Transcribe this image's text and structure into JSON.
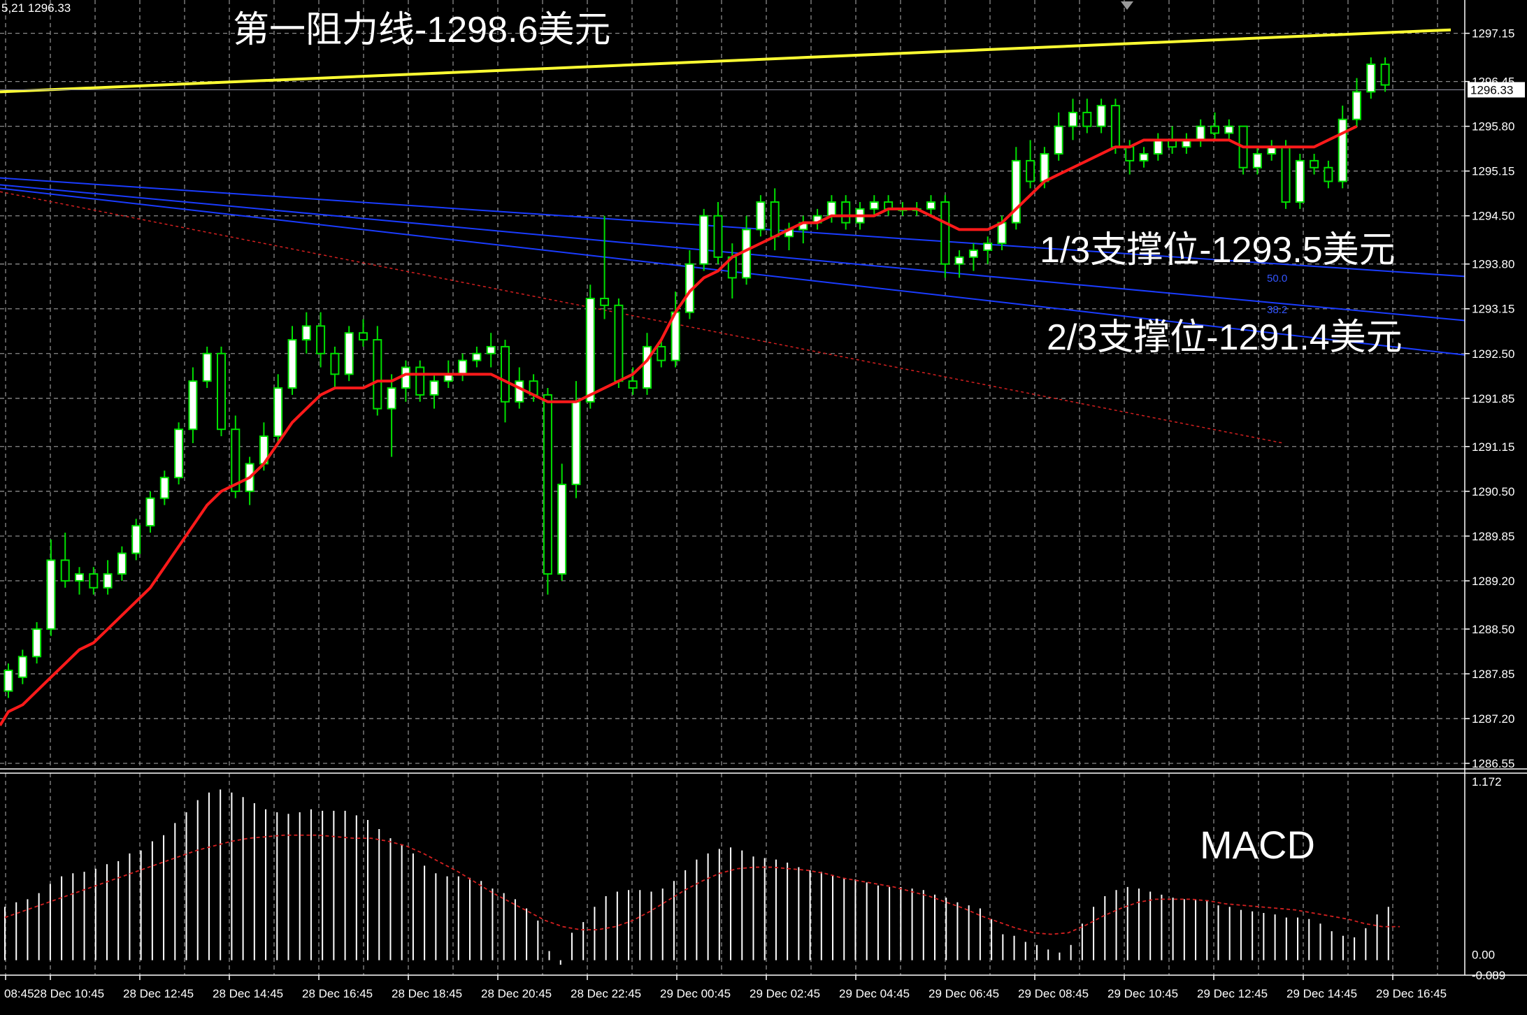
{
  "chart_data": [
    {
      "type": "candlestick",
      "price_label": "5,21 1296.33",
      "ylim": [
        1286.55,
        1297.4
      ],
      "y_ticks": [
        "1297.15",
        "1296.45",
        "1295.80",
        "1295.15",
        "1294.50",
        "1293.80",
        "1293.15",
        "1292.50",
        "1291.85",
        "1291.15",
        "1290.50",
        "1289.85",
        "1289.20",
        "1288.50",
        "1287.85",
        "1287.20",
        "1286.55"
      ],
      "current_price": "1296.33",
      "current_price_value": 1296.33,
      "x_ticks": [
        "08:45",
        "28 Dec 10:45",
        "28 Dec 12:45",
        "28 Dec 14:45",
        "28 Dec 16:45",
        "28 Dec 18:45",
        "28 Dec 20:45",
        "28 Dec 22:45",
        "29 Dec 00:45",
        "29 Dec 02:45",
        "29 Dec 04:45",
        "29 Dec 06:45",
        "29 Dec 08:45",
        "29 Dec 10:45",
        "29 Dec 12:45",
        "29 Dec 14:45",
        "29 Dec 16:45"
      ],
      "ohlc": [
        [
          1287.6,
          1288.0,
          1287.5,
          1287.9
        ],
        [
          1287.8,
          1288.2,
          1287.7,
          1288.1
        ],
        [
          1288.1,
          1288.6,
          1288.0,
          1288.5
        ],
        [
          1288.5,
          1289.8,
          1288.4,
          1289.5
        ],
        [
          1289.5,
          1289.9,
          1289.1,
          1289.2
        ],
        [
          1289.2,
          1289.4,
          1289.0,
          1289.3
        ],
        [
          1289.3,
          1289.4,
          1289.0,
          1289.1
        ],
        [
          1289.1,
          1289.5,
          1289.0,
          1289.3
        ],
        [
          1289.3,
          1289.7,
          1289.2,
          1289.6
        ],
        [
          1289.6,
          1290.1,
          1289.5,
          1290.0
        ],
        [
          1290.0,
          1290.5,
          1289.9,
          1290.4
        ],
        [
          1290.4,
          1290.8,
          1290.3,
          1290.7
        ],
        [
          1290.7,
          1291.5,
          1290.6,
          1291.4
        ],
        [
          1291.4,
          1292.3,
          1291.2,
          1292.1
        ],
        [
          1292.1,
          1292.6,
          1292.0,
          1292.5
        ],
        [
          1292.5,
          1292.6,
          1291.3,
          1291.4
        ],
        [
          1291.4,
          1291.6,
          1290.4,
          1290.5
        ],
        [
          1290.5,
          1291.0,
          1290.3,
          1290.9
        ],
        [
          1290.9,
          1291.5,
          1290.8,
          1291.3
        ],
        [
          1291.3,
          1292.2,
          1291.2,
          1292.0
        ],
        [
          1292.0,
          1292.9,
          1291.9,
          1292.7
        ],
        [
          1292.7,
          1293.1,
          1292.5,
          1292.9
        ],
        [
          1292.9,
          1293.1,
          1292.3,
          1292.5
        ],
        [
          1292.5,
          1292.6,
          1292.0,
          1292.2
        ],
        [
          1292.2,
          1292.9,
          1292.1,
          1292.8
        ],
        [
          1292.8,
          1293.0,
          1292.6,
          1292.7
        ],
        [
          1292.7,
          1292.9,
          1291.6,
          1291.7
        ],
        [
          1291.7,
          1292.2,
          1291.0,
          1292.0
        ],
        [
          1292.0,
          1292.4,
          1291.8,
          1292.3
        ],
        [
          1292.3,
          1292.4,
          1291.8,
          1291.9
        ],
        [
          1291.9,
          1292.2,
          1291.7,
          1292.1
        ],
        [
          1292.1,
          1292.4,
          1292.0,
          1292.2
        ],
        [
          1292.2,
          1292.5,
          1292.1,
          1292.4
        ],
        [
          1292.4,
          1292.6,
          1292.3,
          1292.5
        ],
        [
          1292.5,
          1292.8,
          1292.3,
          1292.6
        ],
        [
          1292.6,
          1292.7,
          1291.5,
          1291.8
        ],
        [
          1291.8,
          1292.3,
          1291.7,
          1292.1
        ],
        [
          1292.1,
          1292.2,
          1291.8,
          1291.9
        ],
        [
          1291.9,
          1292.0,
          1289.0,
          1289.3
        ],
        [
          1289.3,
          1290.9,
          1289.2,
          1290.6
        ],
        [
          1290.6,
          1292.1,
          1290.4,
          1291.8
        ],
        [
          1291.8,
          1293.5,
          1291.7,
          1293.3
        ],
        [
          1293.3,
          1294.5,
          1293.0,
          1293.2
        ],
        [
          1293.2,
          1293.3,
          1292.0,
          1292.1
        ],
        [
          1292.1,
          1292.3,
          1291.9,
          1292.0
        ],
        [
          1292.0,
          1292.8,
          1291.9,
          1292.6
        ],
        [
          1292.6,
          1292.7,
          1292.3,
          1292.4
        ],
        [
          1292.4,
          1293.4,
          1292.3,
          1293.1
        ],
        [
          1293.1,
          1294.0,
          1293.0,
          1293.8
        ],
        [
          1293.8,
          1294.6,
          1293.7,
          1294.5
        ],
        [
          1294.5,
          1294.7,
          1293.8,
          1293.9
        ],
        [
          1293.9,
          1294.1,
          1293.3,
          1293.6
        ],
        [
          1293.6,
          1294.5,
          1293.5,
          1294.3
        ],
        [
          1294.3,
          1294.8,
          1294.2,
          1294.7
        ],
        [
          1294.7,
          1294.9,
          1294.0,
          1294.2
        ],
        [
          1294.2,
          1294.4,
          1294.0,
          1294.3
        ],
        [
          1294.3,
          1294.5,
          1294.1,
          1294.4
        ],
        [
          1294.4,
          1294.6,
          1294.3,
          1294.5
        ],
        [
          1294.5,
          1294.8,
          1294.4,
          1294.7
        ],
        [
          1294.7,
          1294.8,
          1294.3,
          1294.4
        ],
        [
          1294.4,
          1294.7,
          1294.3,
          1294.6
        ],
        [
          1294.6,
          1294.8,
          1294.5,
          1294.7
        ],
        [
          1294.7,
          1294.8,
          1294.5,
          1294.6
        ],
        [
          1294.6,
          1294.7,
          1294.5,
          1294.6
        ],
        [
          1294.6,
          1294.7,
          1294.5,
          1294.6
        ],
        [
          1294.6,
          1294.8,
          1294.5,
          1294.7
        ],
        [
          1294.7,
          1294.8,
          1293.6,
          1293.8
        ],
        [
          1293.8,
          1294.0,
          1293.6,
          1293.9
        ],
        [
          1293.9,
          1294.1,
          1293.7,
          1294.0
        ],
        [
          1294.0,
          1294.2,
          1293.8,
          1294.1
        ],
        [
          1294.1,
          1294.5,
          1294.0,
          1294.4
        ],
        [
          1294.4,
          1295.5,
          1294.3,
          1295.3
        ],
        [
          1295.3,
          1295.6,
          1294.9,
          1295.0
        ],
        [
          1295.0,
          1295.5,
          1294.9,
          1295.4
        ],
        [
          1295.4,
          1296.0,
          1295.3,
          1295.8
        ],
        [
          1295.8,
          1296.2,
          1295.6,
          1296.0
        ],
        [
          1296.0,
          1296.2,
          1295.7,
          1295.8
        ],
        [
          1295.8,
          1296.2,
          1295.7,
          1296.1
        ],
        [
          1296.1,
          1296.2,
          1295.4,
          1295.5
        ],
        [
          1295.5,
          1295.6,
          1295.1,
          1295.3
        ],
        [
          1295.3,
          1295.5,
          1295.2,
          1295.4
        ],
        [
          1295.4,
          1295.7,
          1295.3,
          1295.6
        ],
        [
          1295.6,
          1295.8,
          1295.4,
          1295.5
        ],
        [
          1295.5,
          1295.7,
          1295.4,
          1295.6
        ],
        [
          1295.6,
          1295.9,
          1295.5,
          1295.8
        ],
        [
          1295.8,
          1296.0,
          1295.6,
          1295.7
        ],
        [
          1295.7,
          1295.9,
          1295.6,
          1295.8
        ],
        [
          1295.8,
          1295.8,
          1295.1,
          1295.2
        ],
        [
          1295.2,
          1295.5,
          1295.1,
          1295.4
        ],
        [
          1295.4,
          1295.6,
          1295.3,
          1295.5
        ],
        [
          1295.5,
          1295.6,
          1294.6,
          1294.7
        ],
        [
          1294.7,
          1295.4,
          1294.6,
          1295.3
        ],
        [
          1295.3,
          1295.4,
          1295.1,
          1295.2
        ],
        [
          1295.2,
          1295.3,
          1294.9,
          1295.0
        ],
        [
          1295.0,
          1296.1,
          1294.9,
          1295.9
        ],
        [
          1295.9,
          1296.5,
          1295.8,
          1296.3
        ],
        [
          1296.3,
          1296.8,
          1296.2,
          1296.7
        ],
        [
          1296.7,
          1296.8,
          1296.3,
          1296.4
        ]
      ],
      "ma_red": [
        1287.3,
        1287.4,
        1287.6,
        1287.8,
        1288.0,
        1288.2,
        1288.3,
        1288.5,
        1288.7,
        1288.9,
        1289.1,
        1289.4,
        1289.7,
        1290.0,
        1290.3,
        1290.5,
        1290.6,
        1290.7,
        1290.9,
        1291.2,
        1291.5,
        1291.7,
        1291.9,
        1292.0,
        1292.0,
        1292.0,
        1292.1,
        1292.1,
        1292.2,
        1292.2,
        1292.2,
        1292.2,
        1292.2,
        1292.2,
        1292.2,
        1292.1,
        1292.0,
        1291.9,
        1291.8,
        1291.8,
        1291.8,
        1291.9,
        1292.0,
        1292.1,
        1292.2,
        1292.4,
        1292.7,
        1293.1,
        1293.4,
        1293.6,
        1293.7,
        1293.9,
        1294.0,
        1294.1,
        1294.2,
        1294.3,
        1294.4,
        1294.4,
        1294.5,
        1294.5,
        1294.5,
        1294.5,
        1294.6,
        1294.6,
        1294.6,
        1294.5,
        1294.4,
        1294.3,
        1294.3,
        1294.3,
        1294.4,
        1294.6,
        1294.8,
        1295.0,
        1295.1,
        1295.2,
        1295.3,
        1295.4,
        1295.5,
        1295.5,
        1295.6,
        1295.6,
        1295.6,
        1295.6,
        1295.6,
        1295.6,
        1295.6,
        1295.5,
        1295.5,
        1295.5,
        1295.5,
        1295.5,
        1295.5,
        1295.6,
        1295.7,
        1295.8
      ],
      "ma_red_dotted": {
        "from": [
          1285.0,
          1295.0
        ],
        "to": [
          1291.2,
          1291.3
        ]
      },
      "lines": {
        "resistance_yellow": {
          "from": 1296.3,
          "to": 1297.2
        },
        "blue_1": {
          "from": 1295.05,
          "to": 1293.62
        },
        "blue_2": {
          "from": 1294.95,
          "to": 1292.98
        },
        "blue_3": {
          "from": 1294.9,
          "to": 1292.48
        }
      },
      "fib_labels": [
        "50.0",
        "38.2"
      ],
      "annotations": {
        "resistance": "第一阻力线-1298.6美元",
        "support_1": "1/3支撑位-1293.5美元",
        "support_2": "2/3支撑位-1291.4美元"
      },
      "colors": {
        "bull": "#ffffff",
        "bear": "#000000",
        "wick": "#00e000",
        "ma": "#ff1a1a",
        "resistance": "#ffff33",
        "trend": "#1a3cff",
        "grid": "#8a8a8a",
        "bg": "#000000"
      }
    },
    {
      "type": "bar",
      "title": "MACD",
      "y_ticks": [
        "1.172",
        "0.00",
        "-0.089"
      ],
      "ylim": [
        -0.089,
        1.172
      ],
      "histogram": [
        0.35,
        0.38,
        0.4,
        0.44,
        0.5,
        0.55,
        0.57,
        0.58,
        0.6,
        0.63,
        0.65,
        0.7,
        0.72,
        0.78,
        0.82,
        0.9,
        0.97,
        1.05,
        1.1,
        1.12,
        1.1,
        1.07,
        1.03,
        0.99,
        0.97,
        0.96,
        0.97,
        0.99,
        0.98,
        0.98,
        0.98,
        0.95,
        0.92,
        0.86,
        0.8,
        0.76,
        0.7,
        0.62,
        0.57,
        0.55,
        0.55,
        0.54,
        0.52,
        0.47,
        0.44,
        0.4,
        0.34,
        0.26,
        0.06,
        -0.03,
        0.18,
        0.25,
        0.35,
        0.42,
        0.45,
        0.46,
        0.46,
        0.45,
        0.47,
        0.52,
        0.59,
        0.66,
        0.7,
        0.73,
        0.74,
        0.72,
        0.68,
        0.67,
        0.66,
        0.64,
        0.61,
        0.59,
        0.58,
        0.56,
        0.54,
        0.53,
        0.51,
        0.49,
        0.48,
        0.48,
        0.47,
        0.46,
        0.43,
        0.41,
        0.38,
        0.36,
        0.34,
        0.27,
        0.17,
        0.16,
        0.12,
        0.1,
        0.07,
        0.05,
        0.1,
        0.24,
        0.35,
        0.42,
        0.46,
        0.48,
        0.47,
        0.45,
        0.43,
        0.41,
        0.4,
        0.4,
        0.39,
        0.36,
        0.35,
        0.33,
        0.32,
        0.31,
        0.3,
        0.28,
        0.28,
        0.27,
        0.24,
        0.19,
        0.16,
        0.15,
        0.21,
        0.3,
        0.35
      ],
      "signal": [
        0.28,
        0.32,
        0.36,
        0.4,
        0.44,
        0.48,
        0.52,
        0.56,
        0.6,
        0.64,
        0.68,
        0.72,
        0.75,
        0.78,
        0.8,
        0.81,
        0.82,
        0.82,
        0.82,
        0.81,
        0.8,
        0.8,
        0.78,
        0.75,
        0.7,
        0.64,
        0.58,
        0.51,
        0.44,
        0.38,
        0.32,
        0.26,
        0.22,
        0.2,
        0.2,
        0.22,
        0.26,
        0.32,
        0.39,
        0.46,
        0.52,
        0.57,
        0.6,
        0.61,
        0.61,
        0.6,
        0.59,
        0.57,
        0.54,
        0.52,
        0.5,
        0.48,
        0.45,
        0.42,
        0.38,
        0.34,
        0.29,
        0.25,
        0.21,
        0.18,
        0.17,
        0.18,
        0.23,
        0.29,
        0.34,
        0.38,
        0.4,
        0.4,
        0.4,
        0.39,
        0.37,
        0.36,
        0.35,
        0.34,
        0.33,
        0.31,
        0.29,
        0.27,
        0.24,
        0.22,
        0.22
      ],
      "label": "MACD"
    }
  ]
}
